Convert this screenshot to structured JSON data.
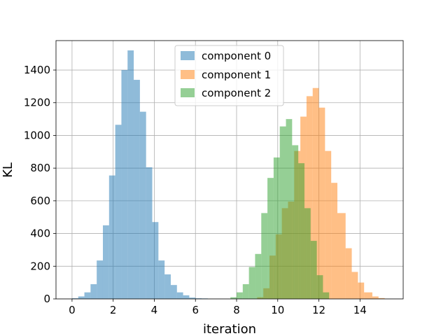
{
  "chart_data": {
    "type": "bar",
    "subtype": "histogram",
    "title": "",
    "xlabel": "iteration",
    "ylabel": "KL",
    "xlim": [
      -0.78,
      16.1
    ],
    "ylim": [
      0,
      1580
    ],
    "xticks": [
      "0",
      "2",
      "4",
      "6",
      "8",
      "10",
      "12",
      "14"
    ],
    "yticks": [
      "0",
      "200",
      "400",
      "600",
      "800",
      "1000",
      "1200",
      "1400"
    ],
    "grid": true,
    "legend_position": "top-center",
    "series": [
      {
        "name": "component 0",
        "color": "#1f77b4",
        "alpha": 0.5,
        "bin_edges": [
          0.0,
          0.3,
          0.6,
          0.9,
          1.2,
          1.5,
          1.8,
          2.1,
          2.4,
          2.7,
          3.0,
          3.3,
          3.6,
          3.9,
          4.2,
          4.5,
          4.8,
          5.1,
          5.4,
          5.7,
          6.0,
          6.3,
          6.6,
          6.9,
          7.2,
          7.5,
          7.8,
          8.1
        ],
        "counts": [
          4,
          15,
          40,
          90,
          235,
          450,
          755,
          1065,
          1400,
          1520,
          1340,
          1145,
          805,
          470,
          235,
          150,
          85,
          40,
          22,
          8,
          4,
          3,
          0,
          0,
          0,
          0,
          0
        ]
      },
      {
        "name": "component 1",
        "color": "#ff7f0e",
        "alpha": 0.5,
        "bin_edges": [
          9.0,
          9.3,
          9.6,
          9.9,
          10.2,
          10.5,
          10.8,
          11.1,
          11.4,
          11.7,
          12.0,
          12.3,
          12.6,
          12.9,
          13.3,
          13.6,
          13.9,
          14.2,
          14.6,
          14.9,
          15.2
        ],
        "counts": [
          10,
          65,
          265,
          395,
          555,
          595,
          905,
          1115,
          1240,
          1290,
          1170,
          905,
          710,
          525,
          310,
          165,
          100,
          40,
          15,
          5
        ]
      },
      {
        "name": "component 2",
        "color": "#2ca02c",
        "alpha": 0.5,
        "bin_edges": [
          7.7,
          8.0,
          8.3,
          8.6,
          8.9,
          9.2,
          9.5,
          9.8,
          10.1,
          10.4,
          10.7,
          11.0,
          11.3,
          11.6,
          11.9,
          12.2,
          12.5
        ],
        "counts": [
          10,
          40,
          90,
          195,
          275,
          525,
          740,
          865,
          1055,
          1100,
          940,
          830,
          555,
          355,
          145,
          40
        ]
      }
    ]
  }
}
